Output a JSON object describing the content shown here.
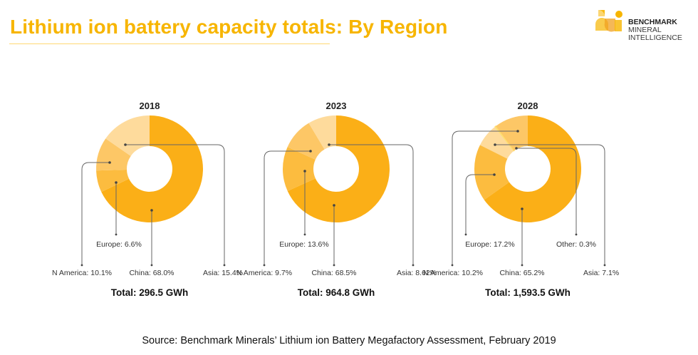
{
  "header": {
    "title": "Lithium ion battery capacity totals: By Region",
    "logo": {
      "line1": "BENCHMARK",
      "line2": "MINERAL",
      "line3": "INTELLIGENCE",
      "icon": "benchmark-logo-mark"
    }
  },
  "colors": {
    "title": "#F7B500",
    "china": "#FBAF17",
    "europe": "#FCBC3F",
    "namerica": "#FDC766",
    "asia": "#FEDB9C",
    "other": "#FFE070",
    "leader": "#666666"
  },
  "chart_data": [
    {
      "type": "pie",
      "variant": "donut",
      "title": "2018",
      "total_label": "Total: 296.5 GWh",
      "total_gwh": 296.5,
      "slices": [
        {
          "key": "china",
          "label": "China: 68.0%",
          "name": "China",
          "value": 68.0
        },
        {
          "key": "europe",
          "label": "Europe: 6.6%",
          "name": "Europe",
          "value": 6.6
        },
        {
          "key": "namerica",
          "label": "N America: 10.1%",
          "name": "N America",
          "value": 10.1
        },
        {
          "key": "asia",
          "label": "Asia: 15.4%",
          "name": "Asia",
          "value": 15.4
        }
      ]
    },
    {
      "type": "pie",
      "variant": "donut",
      "title": "2023",
      "total_label": "Total: 964.8 GWh",
      "total_gwh": 964.8,
      "slices": [
        {
          "key": "china",
          "label": "China: 68.5%",
          "name": "China",
          "value": 68.5
        },
        {
          "key": "europe",
          "label": "Europe: 13.6%",
          "name": "Europe",
          "value": 13.6
        },
        {
          "key": "namerica",
          "label": "N America: 9.7%",
          "name": "N America",
          "value": 9.7
        },
        {
          "key": "asia",
          "label": "Asia: 8.62%",
          "name": "Asia",
          "value": 8.62
        }
      ]
    },
    {
      "type": "pie",
      "variant": "donut",
      "title": "2028",
      "total_label": "Total: 1,593.5 GWh",
      "total_gwh": 1593.5,
      "slices": [
        {
          "key": "china",
          "label": "China: 65.2%",
          "name": "China",
          "value": 65.2
        },
        {
          "key": "europe",
          "label": "Europe: 17.2%",
          "name": "Europe",
          "value": 17.2
        },
        {
          "key": "asia",
          "label": "Asia: 7.1%",
          "name": "Asia",
          "value": 7.1
        },
        {
          "key": "other",
          "label": "Other: 0.3%",
          "name": "Other",
          "value": 0.3
        },
        {
          "key": "namerica",
          "label": "N America: 10.2%",
          "name": "N America",
          "value": 10.2
        }
      ]
    }
  ],
  "footer": {
    "source": "Source: Benchmark Minerals’ Lithium ion Battery Megafactory Assessment, February 2019"
  }
}
